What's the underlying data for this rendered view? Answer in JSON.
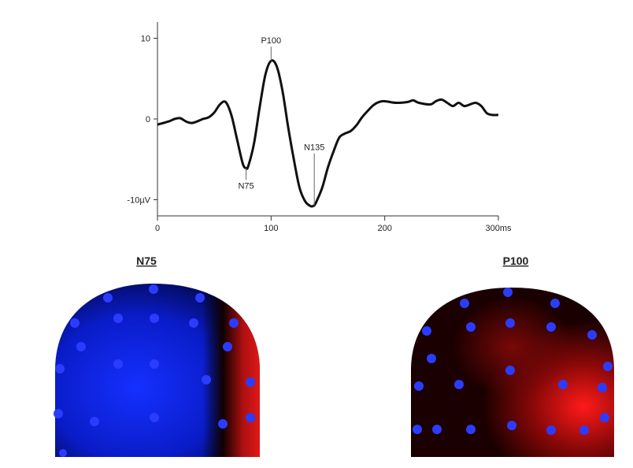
{
  "chart_data": {
    "type": "line",
    "x": [
      0,
      10,
      15,
      20,
      25,
      30,
      35,
      40,
      45,
      50,
      55,
      60,
      65,
      70,
      75,
      78,
      80,
      85,
      90,
      95,
      100,
      105,
      110,
      115,
      120,
      125,
      130,
      135,
      138,
      140,
      145,
      150,
      155,
      160,
      165,
      170,
      175,
      180,
      185,
      190,
      195,
      200,
      210,
      220,
      225,
      230,
      240,
      245,
      250,
      255,
      260,
      265,
      270,
      275,
      280,
      285,
      290,
      295,
      300
    ],
    "series": [
      {
        "color": "#111111",
        "values": [
          -0.7,
          -0.3,
          0,
          0.1,
          -0.3,
          -0.5,
          -0.3,
          0,
          0.2,
          0.8,
          1.8,
          2.1,
          0.5,
          -2.5,
          -5.5,
          -6.1,
          -5.8,
          -3,
          1.5,
          5.5,
          7.2,
          6.5,
          3.5,
          -1,
          -5,
          -8.5,
          -10.2,
          -10.8,
          -10.7,
          -10.2,
          -8.5,
          -6,
          -4,
          -2.3,
          -1.8,
          -1.5,
          -0.8,
          0.2,
          1,
          1.7,
          2.1,
          2.2,
          2.0,
          2.1,
          2.3,
          2.0,
          1.8,
          2.2,
          2.4,
          2.0,
          1.6,
          2.0,
          1.6,
          1.8,
          2.0,
          1.6,
          0.7,
          0.5,
          0.5
        ]
      }
    ],
    "xlim": [
      0,
      300
    ],
    "ylim": [
      -12,
      12
    ],
    "xticks": [
      0,
      100,
      200,
      {
        "value": 300,
        "label": "300ms"
      }
    ],
    "yticks": [
      {
        "value": -10,
        "label": "-10µV"
      },
      0,
      10
    ],
    "annotations": [
      {
        "text": "P100",
        "x": 100,
        "y": 7.2,
        "side": "above"
      },
      {
        "text": "N75",
        "x": 78,
        "y": -6.1,
        "side": "below"
      },
      {
        "text": "N135",
        "x": 138,
        "y": -10.7,
        "side": "above"
      }
    ]
  },
  "topomaps": [
    {
      "label": "N75"
    },
    {
      "label": "P100"
    }
  ]
}
